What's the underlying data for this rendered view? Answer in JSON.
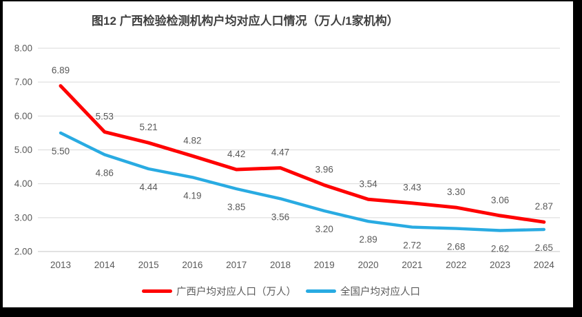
{
  "title": "图12 广西检验检测机构户均对应人口情况（万人/1家机构）",
  "chart_data": {
    "type": "line",
    "categories": [
      "2013",
      "2014",
      "2015",
      "2016",
      "2017",
      "2018",
      "2019",
      "2020",
      "2021",
      "2022",
      "2023",
      "2024"
    ],
    "series": [
      {
        "name": "广西户均对应人口（万人）",
        "color": "#ff0000",
        "values": [
          6.89,
          5.53,
          5.21,
          4.82,
          4.42,
          4.47,
          3.96,
          3.54,
          3.43,
          3.3,
          3.06,
          2.87
        ],
        "label_position": "above"
      },
      {
        "name": "全国户均对应人口",
        "color": "#29abe2",
        "values": [
          5.5,
          4.86,
          4.44,
          4.19,
          3.85,
          3.56,
          3.2,
          2.89,
          2.72,
          2.68,
          2.62,
          2.65
        ],
        "label_position": "below"
      }
    ],
    "ylim": [
      2,
      8
    ],
    "yticks": [
      2,
      3,
      4,
      5,
      6,
      7,
      8
    ],
    "ytick_labels": [
      "2.00",
      "3.00",
      "4.00",
      "5.00",
      "6.00",
      "7.00",
      "8.00"
    ],
    "value_format_decimals": 2,
    "grid": "horizontal",
    "gridline_color": "#d9d9d9",
    "tick_label_color": "#595959",
    "legend_position": "bottom"
  }
}
